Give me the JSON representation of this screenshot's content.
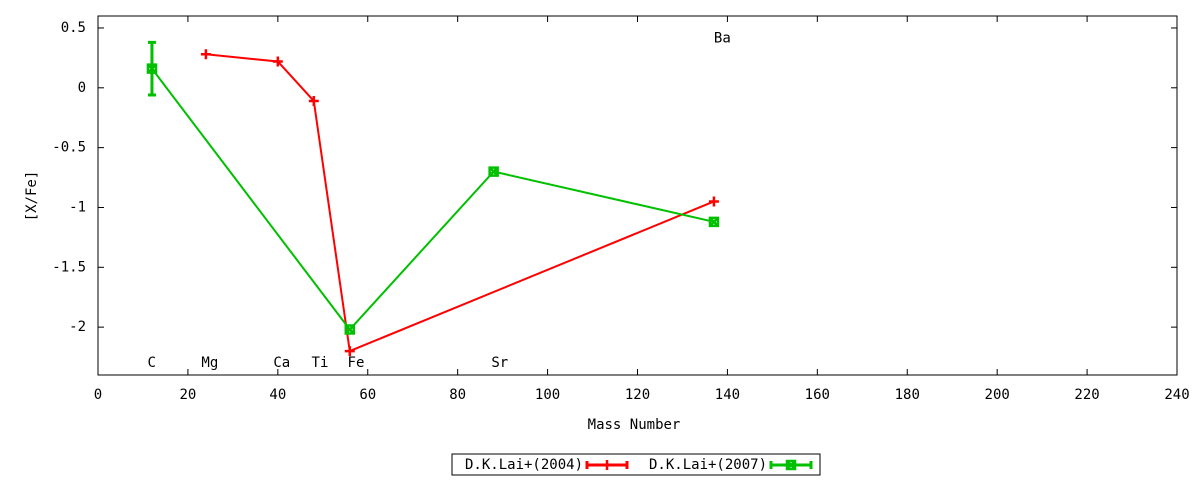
{
  "chart_data": {
    "type": "line",
    "xlabel": "Mass Number",
    "ylabel": "[X/Fe]",
    "xlim": [
      0,
      240
    ],
    "ylim": [
      -2.4,
      0.6
    ],
    "xticks": [
      0,
      20,
      40,
      60,
      80,
      100,
      120,
      140,
      160,
      180,
      200,
      220,
      240
    ],
    "yticks": [
      -2,
      -1.5,
      -1,
      -0.5,
      0,
      0.5
    ],
    "grid": false,
    "legend": "bottom",
    "series": [
      {
        "name": "D.K.Lai+(2004)",
        "color": "#ff0000",
        "marker": "plus",
        "x": [
          24,
          40,
          48,
          56,
          137
        ],
        "values": [
          0.28,
          0.22,
          -0.11,
          -2.2,
          -0.95
        ]
      },
      {
        "name": "D.K.Lai+(2007)",
        "color": "#00c000",
        "marker": "boxcross",
        "x": [
          12,
          56,
          88,
          137
        ],
        "values": [
          0.16,
          -2.02,
          -0.7,
          -1.12
        ],
        "errors": [
          0.22,
          null,
          null,
          null
        ]
      }
    ],
    "annotations": [
      {
        "text": "C",
        "x": 11,
        "y": -2.3
      },
      {
        "text": "Mg",
        "x": 23,
        "y": -2.3
      },
      {
        "text": "Ca",
        "x": 39,
        "y": -2.3
      },
      {
        "text": "Ti",
        "x": 47.5,
        "y": -2.3
      },
      {
        "text": "Fe",
        "x": 55.5,
        "y": -2.3
      },
      {
        "text": "Sr",
        "x": 87.5,
        "y": -2.3
      },
      {
        "text": "Ba",
        "x": 137,
        "y": 0.41
      }
    ]
  }
}
